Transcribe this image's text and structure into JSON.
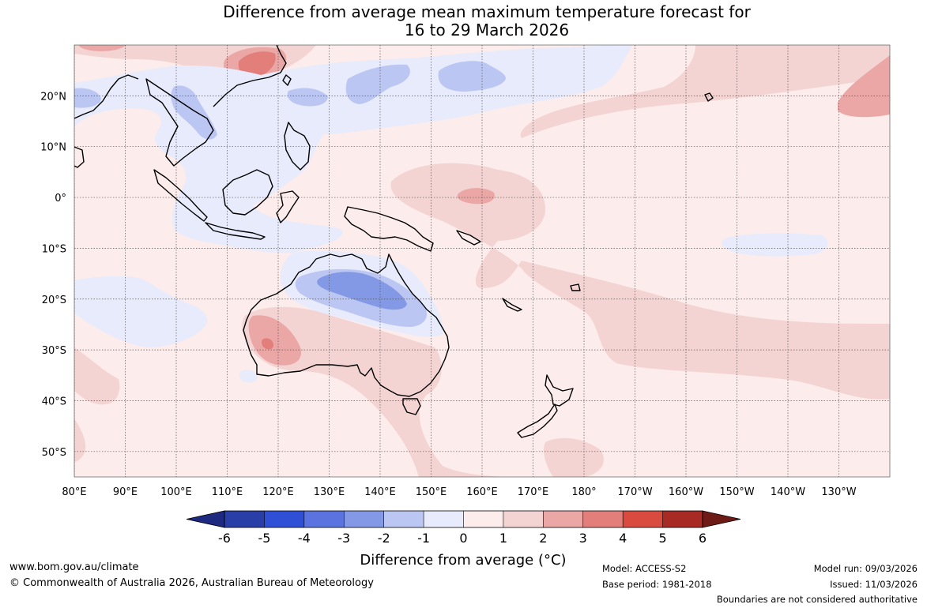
{
  "title": {
    "line1": "Difference from average mean maximum temperature forecast for",
    "line2": "16 to 29 March 2026"
  },
  "map": {
    "lat_labels": [
      "20°N",
      "10°N",
      "0°",
      "10°S",
      "20°S",
      "30°S",
      "40°S",
      "50°S"
    ],
    "lat_values": [
      20,
      10,
      0,
      -10,
      -20,
      -30,
      -40,
      -50
    ],
    "lon_labels": [
      "80°E",
      "90°E",
      "100°E",
      "110°E",
      "120°E",
      "130°E",
      "140°E",
      "150°E",
      "160°E",
      "170°E",
      "180°",
      "170°W",
      "160°W",
      "150°W",
      "140°W",
      "130°W"
    ],
    "lon_values": [
      80,
      90,
      100,
      110,
      120,
      130,
      140,
      150,
      160,
      170,
      180,
      190,
      200,
      210,
      220,
      230
    ],
    "extent": {
      "lon_min": 80,
      "lon_max": 240,
      "lat_min": -55,
      "lat_max": 30
    }
  },
  "colorbar": {
    "labels": [
      "-6",
      "-5",
      "-4",
      "-3",
      "-2",
      "-1",
      "0",
      "1",
      "2",
      "3",
      "4",
      "5",
      "6"
    ],
    "colors": [
      "#2a3ea8",
      "#2f4fd6",
      "#5a73de",
      "#8399e6",
      "#bcc6f2",
      "#e7ebfb",
      "#fceceb",
      "#f4d4d3",
      "#eaa7a5",
      "#e27f7b",
      "#d94a3f",
      "#a82a24"
    ],
    "low_extend_color": "#1e2a80",
    "high_extend_color": "#6e1a16",
    "title": "Difference from average (°C)"
  },
  "colors": {
    "base": "#fceceb",
    "light_blue": "#e7ebfb",
    "mid_blue": "#bcc6f2",
    "blue": "#8399e6",
    "light_red": "#f4d4d3",
    "mid_red": "#eaa7a5",
    "red": "#e27f7b"
  },
  "footer": {
    "website": "www.bom.gov.au/climate",
    "copyright": "© Commonwealth of Australia 2026, Australian Bureau of Meteorology",
    "model": "Model: ACCESS-S2",
    "base_period": "Base period: 1981-2018",
    "model_run": "Model run: 09/03/2026",
    "issued": "Issued: 11/03/2026",
    "boundaries": "Boundaries are not considered authoritative"
  }
}
